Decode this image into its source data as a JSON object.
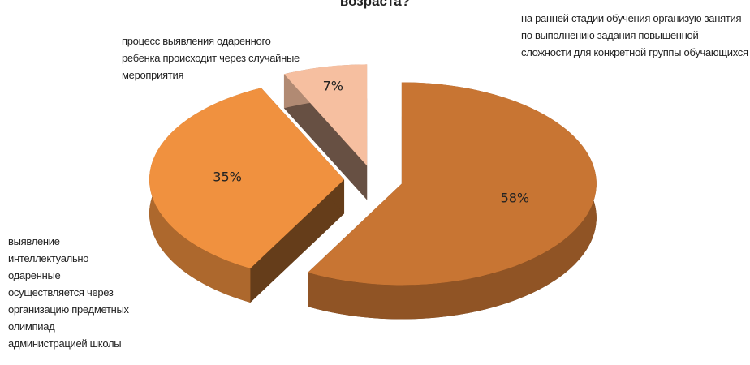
{
  "chart_data": {
    "type": "pie3d",
    "title": "возраста?",
    "categories": [
      "на ранней стадии обучения организую занятия по выполнению задания повышенной сложности для конкретной группы обучающихся",
      "выявление интеллектуально одаренные осуществляется через организацию предметных олимпиад администрацией школы",
      "процесс выявления одаренного ребенка происходит через случайные мероприятия"
    ],
    "values": [
      58,
      35,
      7
    ],
    "value_labels": [
      "58%",
      "35%",
      "7%"
    ],
    "colors": [
      "#c87533",
      "#f0913f",
      "#f6bfa0"
    ]
  }
}
